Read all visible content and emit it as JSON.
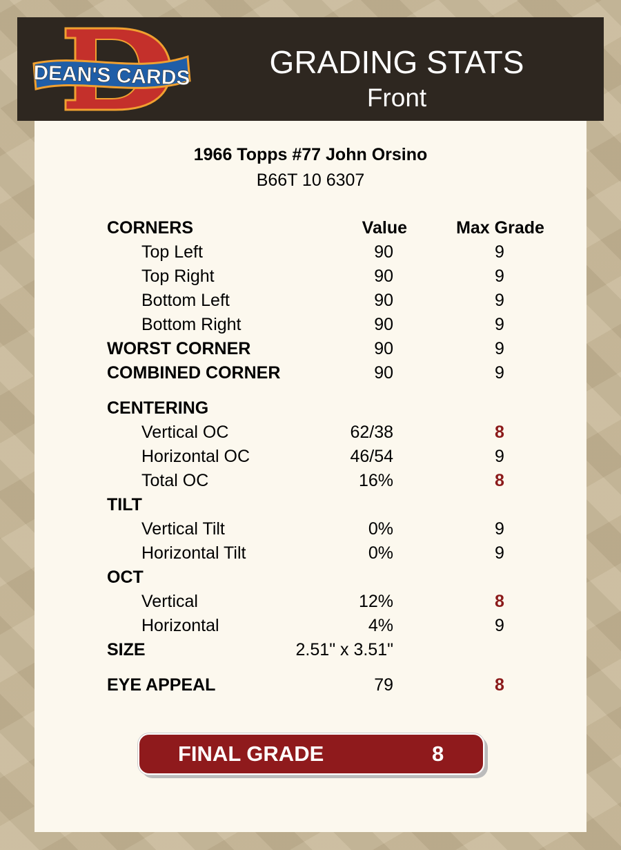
{
  "header": {
    "logo_text": "DEAN'S CARDS",
    "title": "GRADING STATS",
    "subtitle": "Front"
  },
  "card": {
    "name": "1966 Topps #77 John Orsino",
    "code": "B66T 10 6307"
  },
  "colors": {
    "header_bg": "#2e2720",
    "accent_red": "#8f1a1c",
    "card_bg": "#fcf8ee"
  },
  "rows": [
    {
      "label": "CORNERS",
      "value": "Value",
      "max": "Max Grade",
      "type": "header"
    },
    {
      "label": "Top Left",
      "value": "90",
      "max": "9",
      "type": "sub"
    },
    {
      "label": "Top Right",
      "value": "90",
      "max": "9",
      "type": "sub"
    },
    {
      "label": "Bottom Left",
      "value": "90",
      "max": "9",
      "type": "sub"
    },
    {
      "label": "Bottom Right",
      "value": "90",
      "max": "9",
      "type": "sub"
    },
    {
      "label": "WORST CORNER",
      "value": "90",
      "max": "9",
      "type": "bold"
    },
    {
      "label": "COMBINED CORNER",
      "value": "90",
      "max": "9",
      "type": "bold"
    },
    {
      "label": "CENTERING",
      "value": "",
      "max": "",
      "type": "bold",
      "gap": true
    },
    {
      "label": "Vertical OC",
      "value": "62/38",
      "max": "8",
      "type": "sub",
      "red": true
    },
    {
      "label": "Horizontal OC",
      "value": "46/54",
      "max": "9",
      "type": "sub"
    },
    {
      "label": "Total OC",
      "value": "16%",
      "max": "8",
      "type": "sub",
      "red": true
    },
    {
      "label": "TILT",
      "value": "",
      "max": "",
      "type": "bold"
    },
    {
      "label": "Vertical Tilt",
      "value": "0%",
      "max": "9",
      "type": "sub"
    },
    {
      "label": "Horizontal Tilt",
      "value": "0%",
      "max": "9",
      "type": "sub"
    },
    {
      "label": "OCT",
      "value": "",
      "max": "",
      "type": "bold"
    },
    {
      "label": "Vertical",
      "value": "12%",
      "max": "8",
      "type": "sub",
      "red": true
    },
    {
      "label": "Horizontal",
      "value": "4%",
      "max": "9",
      "type": "sub"
    },
    {
      "label": "SIZE",
      "value": "2.51\" x 3.51\"",
      "max": "",
      "type": "bold"
    },
    {
      "label": "EYE APPEAL",
      "value": "79",
      "max": "8",
      "type": "bold",
      "red": true,
      "gap": true
    }
  ],
  "final": {
    "label": "FINAL GRADE",
    "value": "8"
  }
}
